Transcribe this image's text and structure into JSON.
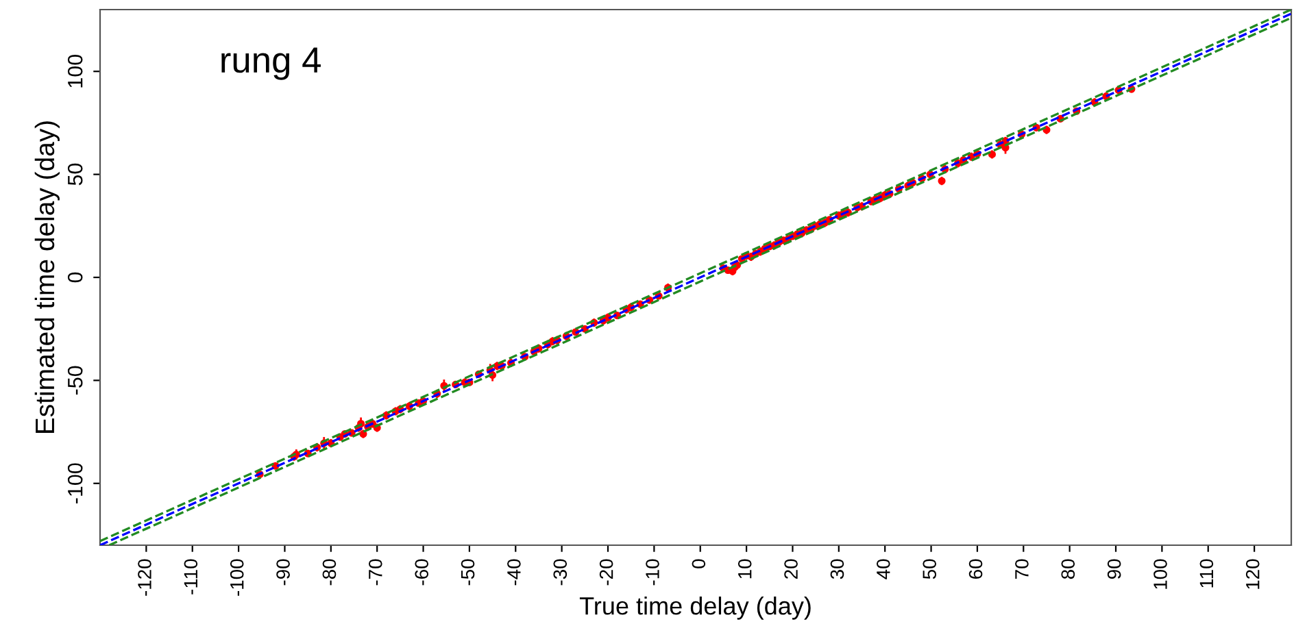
{
  "chart_data": {
    "type": "scatter",
    "title": "rung 4",
    "xlabel": "True time delay (day)",
    "ylabel": "Estimated time delay (day)",
    "xlim": [
      -130,
      128
    ],
    "ylim": [
      -130,
      130
    ],
    "xticks": [
      -120,
      -110,
      -100,
      -90,
      -80,
      -70,
      -60,
      -50,
      -40,
      -30,
      -20,
      -10,
      0,
      10,
      20,
      30,
      40,
      50,
      60,
      70,
      80,
      90,
      100,
      110,
      120
    ],
    "yticks": [
      -100,
      -50,
      0,
      50,
      100
    ],
    "grid": false,
    "legend": false,
    "series": [
      {
        "color": "#ff0000",
        "marker": "circle",
        "x": [
          -95.4,
          -92,
          -88,
          -87.5,
          -85,
          -83,
          -81.5,
          -80,
          -78,
          -77,
          -75.5,
          -74,
          -73.5,
          -73,
          -72,
          -71,
          -70,
          -68,
          -66,
          -65,
          -63,
          -61,
          -60,
          -57,
          -55.5,
          -53,
          -51,
          -50,
          -48,
          -45.5,
          -45,
          -44,
          -43,
          -41,
          -38,
          -36,
          -35,
          -33,
          -32,
          -31,
          -29,
          -27,
          -25,
          -23,
          -21,
          -20,
          -18,
          -16,
          -15,
          -13,
          -11,
          -9,
          -7,
          5,
          6,
          7,
          7.5,
          8,
          9,
          10,
          11,
          12,
          13,
          14,
          15,
          16,
          17,
          18,
          19,
          20,
          21,
          22,
          23,
          24,
          25,
          26,
          27,
          28,
          30,
          31,
          32,
          34,
          35,
          37,
          38,
          39,
          40,
          41,
          43,
          45,
          46,
          48,
          49.8,
          52.3,
          53,
          55.8,
          57,
          58.7,
          60,
          63.2,
          65,
          66.1,
          66.1,
          69.6,
          72.8,
          75,
          78,
          81.5,
          85.4,
          87.9,
          90.6,
          93.4
        ],
        "values": [
          -95.6,
          -91.5,
          -87,
          -86,
          -85.5,
          -82.5,
          -80.5,
          -80.5,
          -77.5,
          -76,
          -75.5,
          -73,
          -71,
          -76,
          -72.5,
          -71,
          -73,
          -67,
          -65,
          -64,
          -62.5,
          -61,
          -60,
          -56.5,
          -52.6,
          -52,
          -51,
          -51,
          -47,
          -45,
          -47.4,
          -43,
          -43,
          -41.5,
          -38.5,
          -36,
          -34.5,
          -32.5,
          -31,
          -30.5,
          -28.5,
          -26.5,
          -25,
          -22,
          -21,
          -19.5,
          -18.5,
          -15.5,
          -14.5,
          -13,
          -11,
          -9,
          -5,
          4.5,
          3.5,
          3,
          5,
          6,
          9,
          10.5,
          10,
          11.5,
          12.5,
          14,
          15,
          15.5,
          17,
          18,
          18.5,
          20,
          21,
          21.5,
          23,
          23.5,
          25,
          26,
          26.5,
          28,
          30,
          31,
          31.5,
          34,
          34.5,
          37,
          38,
          38.5,
          40,
          40.5,
          43,
          44.5,
          46,
          48,
          50,
          46.8,
          52.5,
          55.4,
          57,
          58.6,
          60,
          59.7,
          64.5,
          66.2,
          63,
          69.5,
          72.7,
          71.6,
          77,
          80.7,
          85,
          87.9,
          90.9,
          91.4
        ],
        "errors": [
          1.5,
          1.5,
          2,
          2.5,
          1.5,
          2,
          3,
          2,
          1.5,
          1.5,
          1.5,
          2,
          3,
          2,
          2,
          2,
          2,
          2,
          2,
          2,
          2,
          1.5,
          1.5,
          2,
          3,
          1.5,
          2,
          1.5,
          1.5,
          3,
          3,
          2,
          2,
          2,
          1.5,
          1.5,
          2,
          2,
          2,
          2,
          2,
          1.5,
          1.5,
          2,
          2,
          2,
          1.5,
          2,
          2,
          1.5,
          1.5,
          1.5,
          2,
          1,
          1.5,
          2,
          1.5,
          1.5,
          1.5,
          1.5,
          2,
          1.5,
          2,
          1.5,
          1.5,
          2,
          1.5,
          1.5,
          2,
          1.5,
          1.5,
          2,
          1.5,
          2,
          1.5,
          1.5,
          2,
          1.5,
          2,
          1.5,
          2,
          2,
          2,
          2,
          2,
          2,
          2,
          2,
          2,
          2,
          2,
          2,
          2,
          2,
          2,
          2,
          2,
          2,
          2,
          2,
          2,
          2,
          3,
          1.5,
          1.5,
          2,
          1.5,
          1.5,
          2,
          2,
          2,
          1.5
        ]
      },
      {
        "type": "line",
        "color": "#0000ff",
        "line_style": "dashed",
        "x": [
          -130,
          128
        ],
        "values": [
          -130,
          128
        ]
      },
      {
        "type": "line",
        "color": "#228b22",
        "line_style": "dashed",
        "x": [
          -130,
          128
        ],
        "values": [
          -128,
          130
        ]
      },
      {
        "type": "line",
        "color": "#228b22",
        "line_style": "dashed",
        "x": [
          -128,
          128
        ],
        "values": [
          -130,
          126
        ]
      }
    ]
  }
}
